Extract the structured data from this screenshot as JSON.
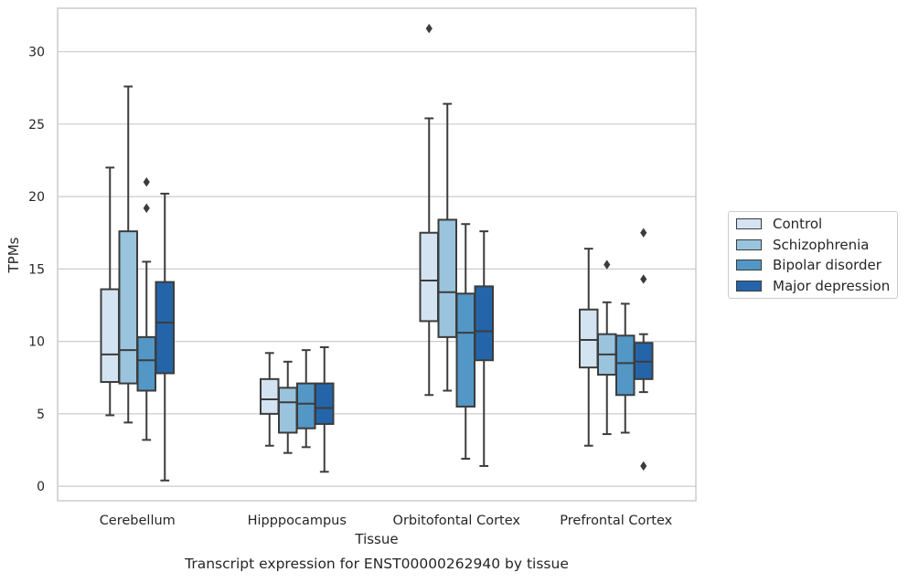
{
  "chart_data": {
    "type": "box",
    "title": "Transcript expression for ENST00000262940 by tissue",
    "xlabel": "Tissue",
    "ylabel": "TPMs",
    "ylim": [
      -1,
      33
    ],
    "yticks": [
      0,
      5,
      10,
      15,
      20,
      25,
      30
    ],
    "grid": true,
    "legend_position": "right",
    "categories": [
      "Cerebellum",
      "Hipppocampus",
      "Orbitofontal Cortex",
      "Prefrontal Cortex"
    ],
    "series": [
      {
        "name": "Control",
        "color": "#d3e3f2",
        "boxes": [
          {
            "whisker_low": 4.9,
            "q1": 7.2,
            "median": 9.1,
            "q3": 13.6,
            "whisker_high": 22.0,
            "outliers": []
          },
          {
            "whisker_low": 2.8,
            "q1": 5.0,
            "median": 6.0,
            "q3": 7.4,
            "whisker_high": 9.2,
            "outliers": []
          },
          {
            "whisker_low": 6.3,
            "q1": 11.4,
            "median": 14.2,
            "q3": 17.5,
            "whisker_high": 25.4,
            "outliers": [
              31.6
            ]
          },
          {
            "whisker_low": 2.8,
            "q1": 8.2,
            "median": 10.1,
            "q3": 12.2,
            "whisker_high": 16.4,
            "outliers": []
          }
        ]
      },
      {
        "name": "Schizophrenia",
        "color": "#9ac4de",
        "boxes": [
          {
            "whisker_low": 4.4,
            "q1": 7.1,
            "median": 9.4,
            "q3": 17.6,
            "whisker_high": 27.6,
            "outliers": []
          },
          {
            "whisker_low": 2.3,
            "q1": 3.7,
            "median": 5.8,
            "q3": 6.8,
            "whisker_high": 8.6,
            "outliers": []
          },
          {
            "whisker_low": 6.6,
            "q1": 10.3,
            "median": 13.4,
            "q3": 18.4,
            "whisker_high": 26.4,
            "outliers": []
          },
          {
            "whisker_low": 3.6,
            "q1": 7.7,
            "median": 9.1,
            "q3": 10.5,
            "whisker_high": 12.7,
            "outliers": [
              15.3
            ]
          }
        ]
      },
      {
        "name": "Bipolar disorder",
        "color": "#5297c6",
        "boxes": [
          {
            "whisker_low": 3.2,
            "q1": 6.6,
            "median": 8.7,
            "q3": 10.3,
            "whisker_high": 15.5,
            "outliers": [
              19.2,
              21.0
            ]
          },
          {
            "whisker_low": 2.7,
            "q1": 4.0,
            "median": 5.7,
            "q3": 7.1,
            "whisker_high": 9.4,
            "outliers": []
          },
          {
            "whisker_low": 1.9,
            "q1": 5.5,
            "median": 10.6,
            "q3": 13.3,
            "whisker_high": 18.1,
            "outliers": []
          },
          {
            "whisker_low": 3.7,
            "q1": 6.3,
            "median": 8.5,
            "q3": 10.4,
            "whisker_high": 12.6,
            "outliers": []
          }
        ]
      },
      {
        "name": "Major depression",
        "color": "#2465a9",
        "boxes": [
          {
            "whisker_low": 0.4,
            "q1": 7.8,
            "median": 11.3,
            "q3": 14.1,
            "whisker_high": 20.2,
            "outliers": []
          },
          {
            "whisker_low": 1.0,
            "q1": 4.3,
            "median": 5.4,
            "q3": 7.1,
            "whisker_high": 9.6,
            "outliers": []
          },
          {
            "whisker_low": 1.4,
            "q1": 8.7,
            "median": 10.7,
            "q3": 13.8,
            "whisker_high": 17.6,
            "outliers": []
          },
          {
            "whisker_low": 6.5,
            "q1": 7.4,
            "median": 8.6,
            "q3": 9.9,
            "whisker_high": 10.5,
            "outliers": [
              1.4,
              14.3,
              17.5
            ]
          }
        ]
      }
    ]
  }
}
